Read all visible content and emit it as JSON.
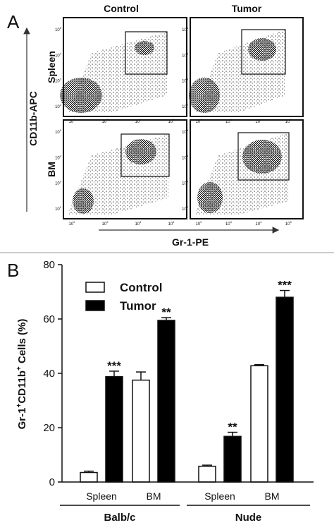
{
  "panel_a": {
    "label": "A",
    "columns": [
      "Control",
      "Tumor"
    ],
    "rows": [
      "Spleen",
      "BM"
    ],
    "ylabel": "CD11b-APC",
    "xlabel": "Gr-1-PE",
    "tick_base": "10",
    "tick_exponents": [
      "2",
      "3",
      "4",
      "5"
    ]
  },
  "chart_data": {
    "type": "bar",
    "panel_label": "B",
    "ylabel_parts": [
      "Gr-1",
      "+",
      "CD11b",
      "+",
      " Cells (%)"
    ],
    "categories": [
      "Spleen",
      "BM",
      "Spleen",
      "BM"
    ],
    "groups": [
      "Balb/c",
      "Nude"
    ],
    "series": [
      {
        "name": "Control",
        "color": "#ffffff",
        "values": [
          3.5,
          37.5,
          5.8,
          42.8
        ],
        "errors": [
          0.5,
          3,
          0.4,
          0.4
        ]
      },
      {
        "name": "Tumor",
        "color": "#000000",
        "values": [
          38.8,
          59.5,
          16.8,
          68.0
        ],
        "errors": [
          2,
          1,
          1.5,
          2.5
        ],
        "annotations": [
          "***",
          "**",
          "**",
          "***"
        ]
      }
    ],
    "ylim": [
      0,
      80
    ],
    "yticks": [
      0,
      20,
      40,
      60,
      80
    ]
  }
}
